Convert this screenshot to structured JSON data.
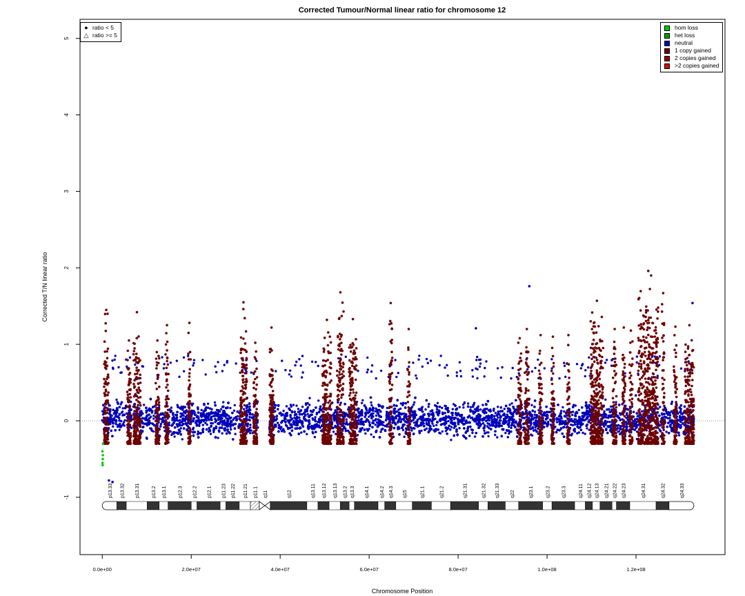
{
  "chart_data": {
    "type": "scatter",
    "title": "Corrected Tumour/Normal linear ratio for chromosome  12",
    "xlabel": "Chromosome Position",
    "ylabel": "Corrected T/N linear ratio",
    "xlim": [
      -5000000,
      140000000
    ],
    "ylim": [
      -1.75,
      5.25
    ],
    "xticks": [
      0,
      20000000,
      40000000,
      60000000,
      80000000,
      100000000,
      120000000
    ],
    "xtick_labels": [
      "0.0e+00",
      "2.0e+07",
      "4.0e+07",
      "6.0e+07",
      "8.0e+07",
      "1.0e+08",
      "1.2e+08"
    ],
    "yticks": [
      -1,
      0,
      1,
      2,
      3,
      4,
      5
    ],
    "ytick_labels": [
      "-1",
      "0",
      "1",
      "2",
      "3",
      "4",
      "5"
    ],
    "reference_line": 0,
    "chromosome_length": 133000000,
    "centromere": [
      34500000,
      37500000
    ],
    "data_gap": [
      35000000,
      37500000
    ],
    "shape_legend": [
      {
        "symbol": "●",
        "label": "ratio < 5"
      },
      {
        "symbol": "△",
        "label": "ratio >= 5"
      }
    ],
    "color_legend": [
      {
        "label": "hom loss",
        "color": "#00cc00"
      },
      {
        "label": "het loss",
        "color": "#009900"
      },
      {
        "label": "neutral",
        "color": "#0000bb"
      },
      {
        "label": "1 copy gained",
        "color": "#6e0000"
      },
      {
        "label": "2 copies gained",
        "color": "#990000"
      },
      {
        "label": ">2 copies gained",
        "color": "#cc1111"
      }
    ],
    "neutral_band": [
      -0.45,
      0.55
    ],
    "gained_segments": [
      {
        "start": 0.4,
        "end": 1.4,
        "peak": 1.45
      },
      {
        "start": 5.6,
        "end": 6.4,
        "peak": 1.05
      },
      {
        "start": 7.0,
        "end": 8.6,
        "peak": 1.42
      },
      {
        "start": 12.0,
        "end": 12.8,
        "peak": 1.05
      },
      {
        "start": 14.2,
        "end": 14.9,
        "peak": 1.25
      },
      {
        "start": 19.3,
        "end": 19.9,
        "peak": 1.28
      },
      {
        "start": 31.0,
        "end": 32.5,
        "peak": 1.55
      },
      {
        "start": 34.0,
        "end": 34.8,
        "peak": 1.02
      },
      {
        "start": 37.6,
        "end": 38.5,
        "peak": 1.22
      },
      {
        "start": 49.5,
        "end": 51.5,
        "peak": 1.32
      },
      {
        "start": 52.8,
        "end": 54.3,
        "peak": 1.68
      },
      {
        "start": 55.5,
        "end": 57.2,
        "peak": 1.33
      },
      {
        "start": 64.5,
        "end": 65.2,
        "peak": 1.54
      },
      {
        "start": 68.6,
        "end": 69.2,
        "peak": 1.2
      },
      {
        "start": 93.5,
        "end": 94.2,
        "peak": 1.08
      },
      {
        "start": 95.0,
        "end": 95.9,
        "peak": 1.2
      },
      {
        "start": 98.2,
        "end": 98.9,
        "peak": 1.12
      },
      {
        "start": 101.0,
        "end": 101.6,
        "peak": 1.1
      },
      {
        "start": 104.5,
        "end": 105.1,
        "peak": 1.12
      },
      {
        "start": 109.8,
        "end": 112.6,
        "peak": 1.57
      },
      {
        "start": 114.8,
        "end": 115.6,
        "peak": 1.2
      },
      {
        "start": 116.9,
        "end": 117.6,
        "peak": 1.22
      },
      {
        "start": 118.5,
        "end": 119.2,
        "peak": 1.18
      },
      {
        "start": 120.5,
        "end": 125.0,
        "peak": 1.96
      },
      {
        "start": 125.8,
        "end": 126.4,
        "peak": 1.67
      },
      {
        "start": 128.5,
        "end": 129.2,
        "peak": 1.23
      },
      {
        "start": 131.0,
        "end": 133.0,
        "peak": 1.25
      }
    ],
    "hom_loss_points": [
      [
        0.05,
        -0.55
      ],
      [
        0.08,
        -0.58
      ],
      [
        0.11,
        -0.5
      ],
      [
        0.14,
        -0.45
      ],
      [
        0.02,
        -0.4
      ],
      [
        0.16,
        -0.3
      ]
    ],
    "outlier_points": [
      [
        96.0,
        1.76
      ],
      [
        84.0,
        1.21
      ],
      [
        132.7,
        1.54
      ],
      [
        2.3,
        -0.8
      ],
      [
        1.5,
        -0.78
      ]
    ],
    "ideogram_bands": [
      {
        "name": "p13.33",
        "start": 0,
        "end": 3.3,
        "stain": "white"
      },
      {
        "name": "p13.32",
        "start": 3.3,
        "end": 5.4,
        "stain": "dark"
      },
      {
        "name": "p13.31",
        "start": 5.4,
        "end": 10.1,
        "stain": "white"
      },
      {
        "name": "p13.2",
        "start": 10.1,
        "end": 12.8,
        "stain": "dark"
      },
      {
        "name": "p13.1",
        "start": 12.8,
        "end": 14.8,
        "stain": "white"
      },
      {
        "name": "p12.3",
        "start": 14.8,
        "end": 20.0,
        "stain": "dark"
      },
      {
        "name": "p12.2",
        "start": 20.0,
        "end": 21.3,
        "stain": "white"
      },
      {
        "name": "p12.1",
        "start": 21.3,
        "end": 26.5,
        "stain": "dark"
      },
      {
        "name": "p11.23",
        "start": 26.5,
        "end": 27.8,
        "stain": "white"
      },
      {
        "name": "p11.22",
        "start": 27.8,
        "end": 30.8,
        "stain": "dark"
      },
      {
        "name": "p11.21",
        "start": 30.8,
        "end": 33.3,
        "stain": "white"
      },
      {
        "name": "p11.1",
        "start": 33.3,
        "end": 35.3,
        "stain": "hatch"
      },
      {
        "name": "q11",
        "start": 35.3,
        "end": 37.8,
        "stain": "cen"
      },
      {
        "name": "q12",
        "start": 37.8,
        "end": 46.0,
        "stain": "dark"
      },
      {
        "name": "q13.11",
        "start": 46.0,
        "end": 48.5,
        "stain": "white"
      },
      {
        "name": "q13.12",
        "start": 48.5,
        "end": 51.0,
        "stain": "dark"
      },
      {
        "name": "q13.13",
        "start": 51.0,
        "end": 53.5,
        "stain": "white"
      },
      {
        "name": "q13.2",
        "start": 53.5,
        "end": 55.5,
        "stain": "dark"
      },
      {
        "name": "q13.3",
        "start": 55.5,
        "end": 56.7,
        "stain": "white"
      },
      {
        "name": "q14.1",
        "start": 56.7,
        "end": 62.0,
        "stain": "dark"
      },
      {
        "name": "q14.2",
        "start": 62.0,
        "end": 63.5,
        "stain": "white"
      },
      {
        "name": "q14.3",
        "start": 63.5,
        "end": 66.0,
        "stain": "dark"
      },
      {
        "name": "q15",
        "start": 66.0,
        "end": 69.7,
        "stain": "white"
      },
      {
        "name": "q21.1",
        "start": 69.7,
        "end": 74.0,
        "stain": "dark"
      },
      {
        "name": "q21.2",
        "start": 74.0,
        "end": 78.3,
        "stain": "white"
      },
      {
        "name": "q21.31",
        "start": 78.3,
        "end": 84.6,
        "stain": "dark"
      },
      {
        "name": "q21.32",
        "start": 84.6,
        "end": 86.7,
        "stain": "white"
      },
      {
        "name": "q21.33",
        "start": 86.7,
        "end": 90.6,
        "stain": "dark"
      },
      {
        "name": "q22",
        "start": 90.6,
        "end": 93.6,
        "stain": "white"
      },
      {
        "name": "q23.1",
        "start": 93.6,
        "end": 99.0,
        "stain": "dark"
      },
      {
        "name": "q23.2",
        "start": 99.0,
        "end": 101.1,
        "stain": "white"
      },
      {
        "name": "q23.3",
        "start": 101.1,
        "end": 106.2,
        "stain": "dark"
      },
      {
        "name": "q24.11",
        "start": 106.2,
        "end": 108.6,
        "stain": "white"
      },
      {
        "name": "q24.12",
        "start": 108.6,
        "end": 110.2,
        "stain": "dark"
      },
      {
        "name": "q24.13",
        "start": 110.2,
        "end": 111.9,
        "stain": "white"
      },
      {
        "name": "q24.21",
        "start": 111.9,
        "end": 114.6,
        "stain": "dark"
      },
      {
        "name": "q24.22",
        "start": 114.6,
        "end": 115.6,
        "stain": "white"
      },
      {
        "name": "q24.23",
        "start": 115.6,
        "end": 118.6,
        "stain": "dark"
      },
      {
        "name": "q24.31",
        "start": 118.6,
        "end": 124.5,
        "stain": "white"
      },
      {
        "name": "q24.32",
        "start": 124.5,
        "end": 127.4,
        "stain": "dark"
      },
      {
        "name": "q24.33",
        "start": 127.4,
        "end": 133.0,
        "stain": "white"
      }
    ]
  }
}
